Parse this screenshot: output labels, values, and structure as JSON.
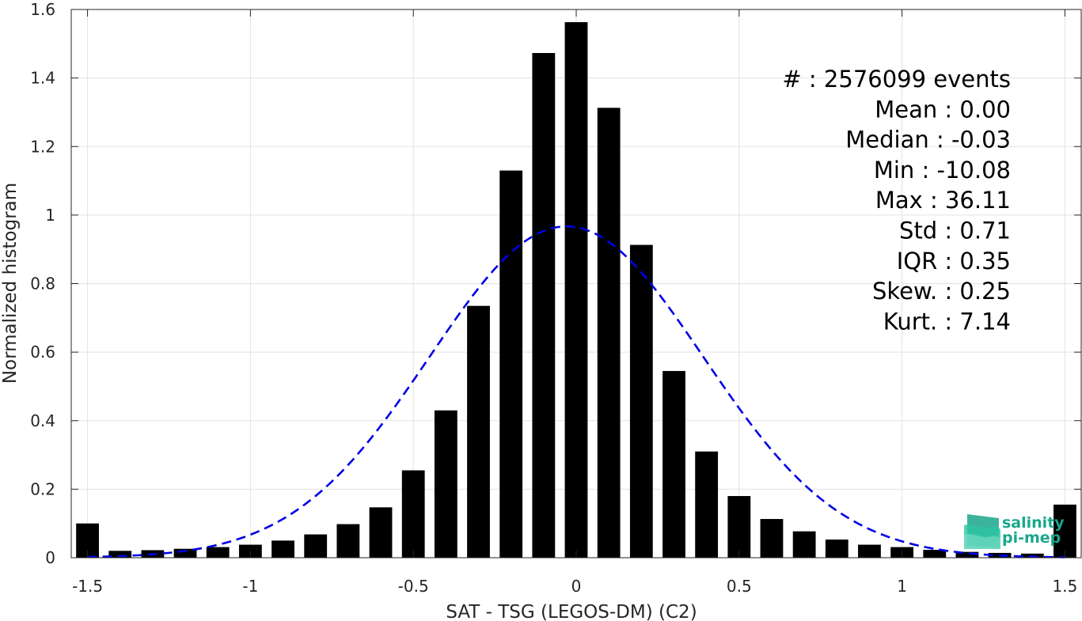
{
  "chart_data": {
    "type": "bar",
    "xlabel": "SAT - TSG (LEGOS-DM) (C2)",
    "ylabel": "Normalized histogram",
    "xlim": [
      -1.55,
      1.55
    ],
    "ylim": [
      0,
      1.6
    ],
    "xticks": [
      -1.5,
      -1,
      -0.5,
      0,
      0.5,
      1,
      1.5
    ],
    "xtick_labels": [
      "-1.5",
      "-1",
      "-0.5",
      "0",
      "0.5",
      "1",
      "1.5"
    ],
    "yticks": [
      0,
      0.2,
      0.4,
      0.6,
      0.8,
      1,
      1.2,
      1.4,
      1.6
    ],
    "ytick_labels": [
      "0",
      "0.2",
      "0.4",
      "0.6",
      "0.8",
      "1",
      "1.2",
      "1.4",
      "1.6"
    ],
    "grid": true,
    "bar_width": 0.07,
    "bars": {
      "x": [
        -1.5,
        -1.4,
        -1.3,
        -1.2,
        -1.1,
        -1.0,
        -0.9,
        -0.8,
        -0.7,
        -0.6,
        -0.5,
        -0.4,
        -0.3,
        -0.2,
        -0.1,
        0.0,
        0.1,
        0.2,
        0.3,
        0.4,
        0.5,
        0.6,
        0.7,
        0.8,
        0.9,
        1.0,
        1.1,
        1.2,
        1.3,
        1.4,
        1.5
      ],
      "values": [
        0.1,
        0.02,
        0.022,
        0.026,
        0.031,
        0.038,
        0.05,
        0.068,
        0.098,
        0.147,
        0.255,
        0.43,
        0.735,
        1.13,
        1.473,
        1.563,
        1.313,
        0.913,
        0.545,
        0.31,
        0.18,
        0.113,
        0.077,
        0.053,
        0.038,
        0.031,
        0.023,
        0.017,
        0.014,
        0.012,
        0.155
      ],
      "color": "#000000"
    },
    "fit_curve": {
      "style": "dashed",
      "color": "#0000e6",
      "mean": -0.03,
      "peak": 0.967,
      "sigma": 0.42
    },
    "stats": [
      "#  : 2576099 events",
      "Mean : 0.00",
      "Median : -0.03",
      "Min : -10.08",
      "Max : 36.11",
      "Std : 0.71",
      "IQR : 0.35",
      "Skew. : 0.25",
      "Kurt. : 7.14"
    ]
  },
  "logo": {
    "line1": "salinity",
    "line2": "pi-mep",
    "color": "#1aa68c"
  }
}
